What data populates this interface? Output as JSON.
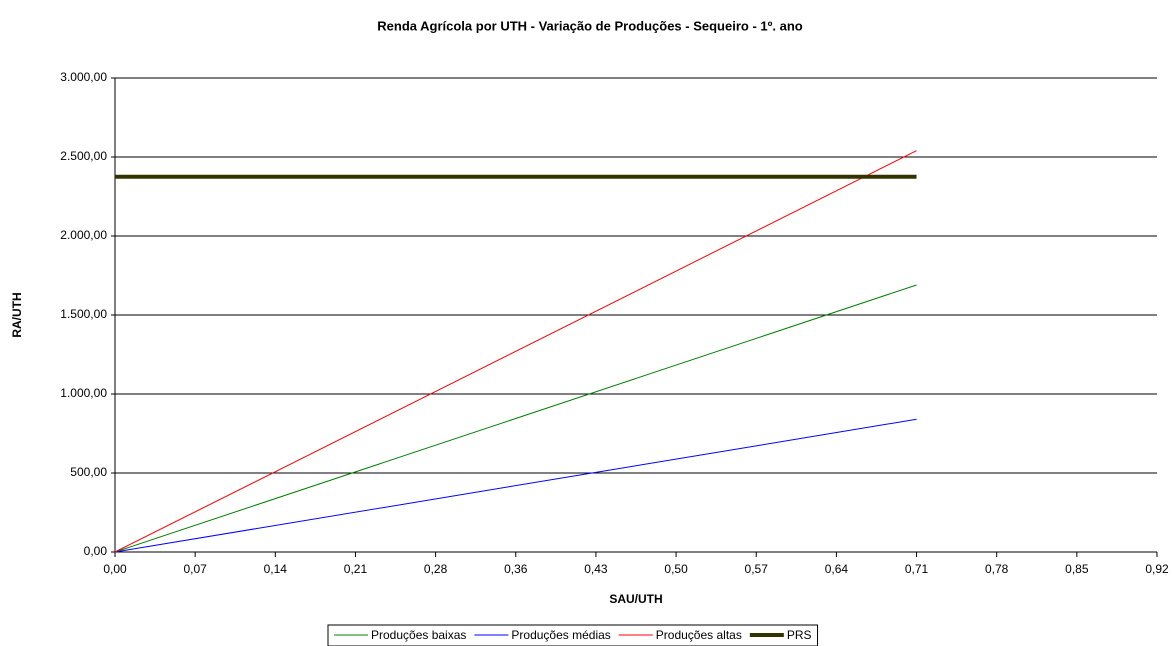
{
  "chart_data": {
    "type": "line",
    "title": "Renda Agrícola por UTH - Variação de Produções - Sequeiro - 1º. ano",
    "xlabel": "SAU/UTH",
    "ylabel": "RA/UTH",
    "x": [
      0,
      0.71
    ],
    "series": [
      {
        "name": "Produções baixas",
        "color": "#008000",
        "width": 1,
        "values": [
          0,
          1690
        ]
      },
      {
        "name": "Produções médias",
        "color": "#0000ff",
        "width": 1,
        "values": [
          0,
          840
        ]
      },
      {
        "name": "Produções altas",
        "color": "#ff0000",
        "width": 1,
        "values": [
          0,
          2540
        ]
      },
      {
        "name": "PRS",
        "color": "#333300",
        "width": 4,
        "values": [
          2375,
          2375
        ]
      }
    ],
    "xlim": [
      0,
      0.923
    ],
    "xticks": [
      {
        "value": 0,
        "label": "0,00"
      },
      {
        "value": 0.071,
        "label": "0,07"
      },
      {
        "value": 0.142,
        "label": "0,14"
      },
      {
        "value": 0.213,
        "label": "0,21"
      },
      {
        "value": 0.284,
        "label": "0,28"
      },
      {
        "value": 0.355,
        "label": "0,36"
      },
      {
        "value": 0.426,
        "label": "0,43"
      },
      {
        "value": 0.497,
        "label": "0,50"
      },
      {
        "value": 0.568,
        "label": "0,57"
      },
      {
        "value": 0.639,
        "label": "0,64"
      },
      {
        "value": 0.71,
        "label": "0,71"
      },
      {
        "value": 0.781,
        "label": "0,78"
      },
      {
        "value": 0.852,
        "label": "0,85"
      },
      {
        "value": 0.923,
        "label": "0,92"
      }
    ],
    "ylim": [
      0,
      3000
    ],
    "yticks": [
      {
        "value": 0,
        "label": "0,00"
      },
      {
        "value": 500,
        "label": "500,00"
      },
      {
        "value": 1000,
        "label": "1.000,00"
      },
      {
        "value": 1500,
        "label": "1.500,00"
      },
      {
        "value": 2000,
        "label": "2.000,00"
      },
      {
        "value": 2500,
        "label": "2.500,00"
      },
      {
        "value": 3000,
        "label": "3.000,00"
      }
    ],
    "grid": true,
    "legend": "bottom"
  }
}
